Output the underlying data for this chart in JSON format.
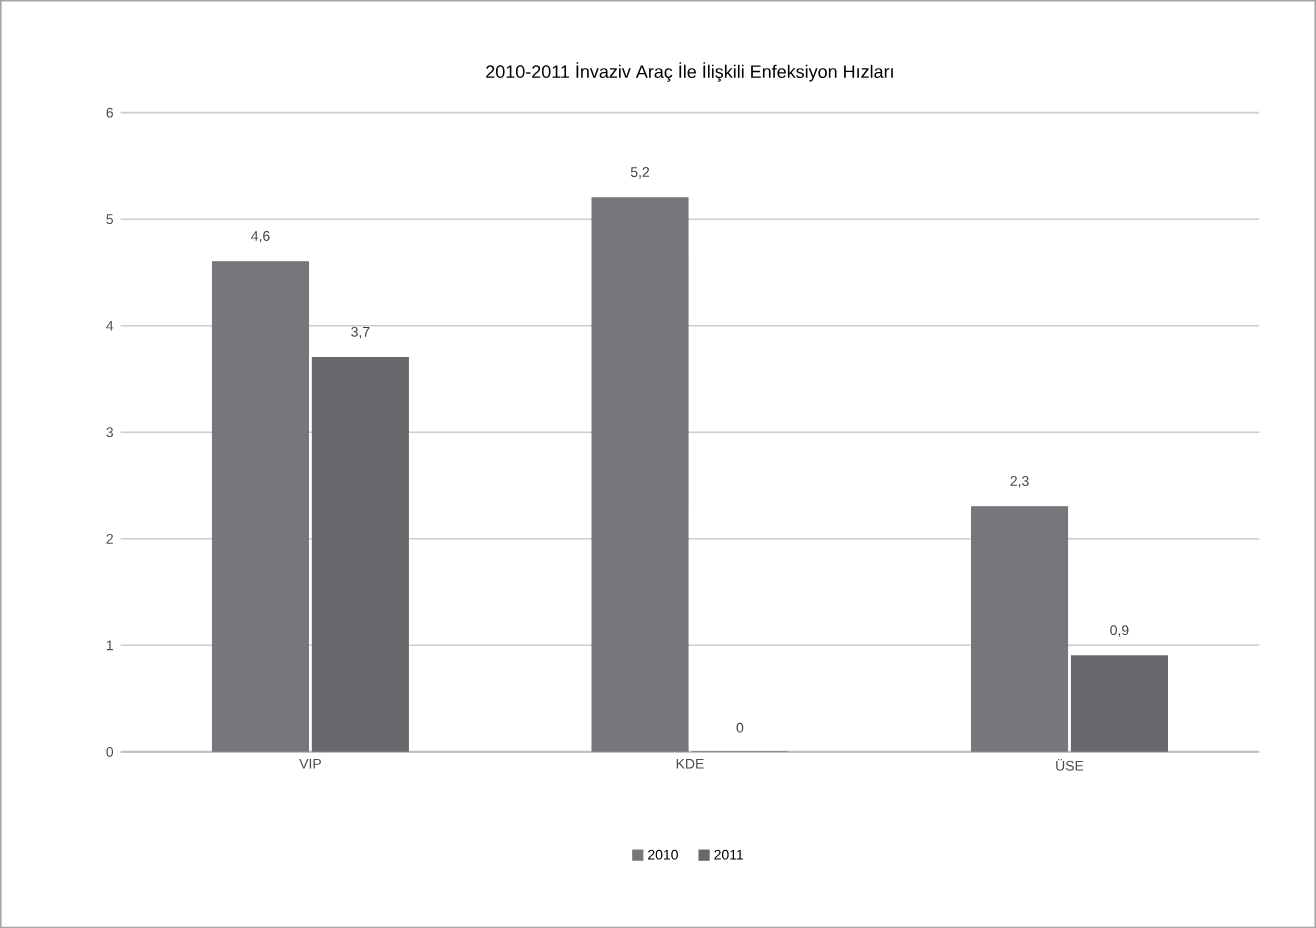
{
  "chart_data": {
    "type": "bar",
    "title": "2010-2011 İnvaziv Araç İle İlişkili Enfeksiyon Hızları",
    "categories": [
      "VIP",
      "KDE",
      "ÜSE"
    ],
    "series": [
      {
        "name": "2010",
        "color": "#76777a",
        "values": [
          4.6,
          5.2,
          2.3
        ],
        "value_labels": [
          "4,6",
          "5,2",
          "2,3"
        ]
      },
      {
        "name": "2011",
        "color": "#67686b",
        "values": [
          3.7,
          0,
          0.9
        ],
        "value_labels": [
          "3,7",
          "0",
          "0,9"
        ]
      }
    ],
    "ylim": [
      0,
      6
    ],
    "yticks": [
      0,
      1,
      2,
      3,
      4,
      5,
      6
    ],
    "grid": "y",
    "legend": "bottom"
  }
}
